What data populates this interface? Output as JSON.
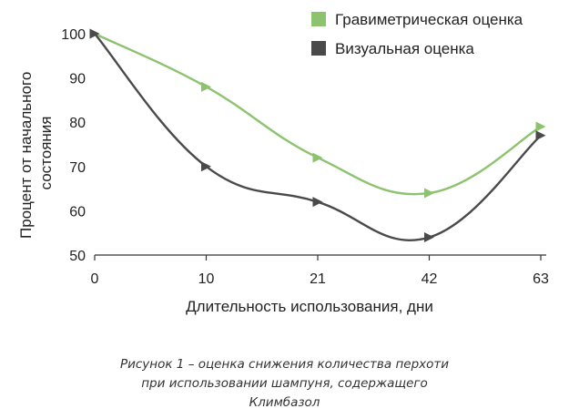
{
  "chart_data": {
    "type": "line",
    "categories": [
      "0",
      "10",
      "21",
      "42",
      "63"
    ],
    "x": [
      0,
      1,
      2,
      3,
      4
    ],
    "ylabel": [
      "Процент от начального",
      "состояния"
    ],
    "xlabel": "Длительность использования, дни",
    "ylim": [
      50,
      100
    ],
    "yticks": [
      "50",
      "60",
      "70",
      "80",
      "90",
      "100"
    ],
    "ytick_values": [
      50,
      60,
      70,
      80,
      90,
      100
    ],
    "legend_position": "top-right",
    "grid": false,
    "series": [
      {
        "name": "Гравиметрическая оценка",
        "color": "#8dc26f",
        "values": [
          100,
          88,
          72,
          64,
          79
        ]
      },
      {
        "name": "Визуальная оценка",
        "color": "#4a4a4a",
        "values": [
          100,
          70,
          62,
          54,
          77
        ]
      }
    ]
  },
  "caption": {
    "line1": "Рисунок 1 – оценка снижения количества перхоти",
    "line2": "при использовании шампуня, содержащего",
    "line3": "Климбазол"
  }
}
